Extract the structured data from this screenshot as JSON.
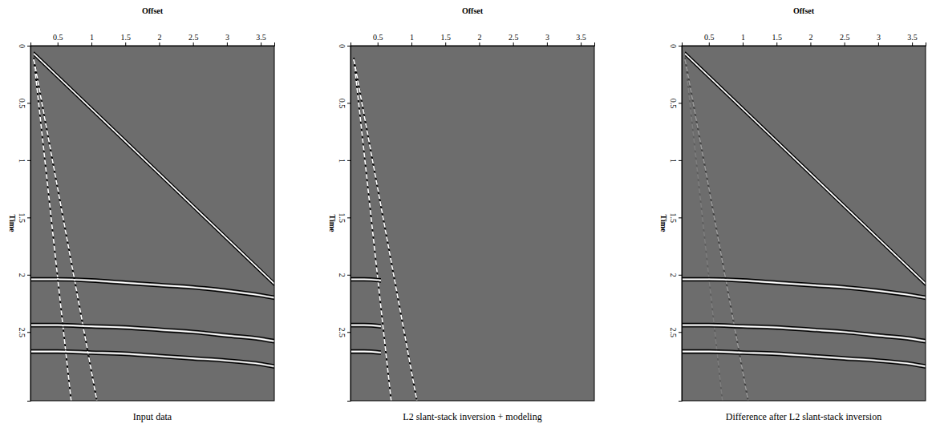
{
  "chart_data": [
    {
      "type": "line",
      "title": "Input data",
      "x_label": "Offset",
      "y_label": "Time",
      "xlim": [
        0.1,
        3.7
      ],
      "ylim": [
        0,
        3.1
      ],
      "xticks": [
        0.5,
        1,
        1.5,
        2,
        2.5,
        3,
        3.5
      ],
      "yticks": [
        0,
        0.5,
        1,
        1.5,
        2,
        2.5
      ],
      "series": [
        {
          "color": "#ffffff",
          "line_style": "solid",
          "x": [
            0.15,
            3.7
          ],
          "values": [
            0.07,
            2.08
          ]
        },
        {
          "color": "#ffffff",
          "line_style": "dashed",
          "x": [
            0.15,
            0.7
          ],
          "values": [
            0.12,
            3.1
          ]
        },
        {
          "color": "#ffffff",
          "line_style": "dashed",
          "x": [
            0.15,
            1.08
          ],
          "values": [
            0.12,
            3.1
          ]
        },
        {
          "color": "#ffffff",
          "line_style": "solid",
          "x": [
            0.1,
            0.5,
            1,
            1.5,
            2,
            2.5,
            3,
            3.5,
            3.7
          ],
          "values": [
            2.04,
            2.04,
            2.05,
            2.07,
            2.09,
            2.11,
            2.14,
            2.18,
            2.2
          ]
        },
        {
          "color": "#ffffff",
          "line_style": "solid",
          "x": [
            0.1,
            0.5,
            1,
            1.5,
            2,
            2.5,
            3,
            3.5,
            3.7
          ],
          "values": [
            2.44,
            2.44,
            2.45,
            2.46,
            2.48,
            2.5,
            2.53,
            2.56,
            2.58
          ]
        },
        {
          "color": "#ffffff",
          "line_style": "solid",
          "x": [
            0.1,
            0.5,
            1,
            1.5,
            2,
            2.5,
            3,
            3.5,
            3.7
          ],
          "values": [
            2.67,
            2.67,
            2.68,
            2.69,
            2.71,
            2.73,
            2.75,
            2.78,
            2.8
          ]
        }
      ]
    },
    {
      "type": "line",
      "title": "L2 slant-stack inversion + modeling",
      "x_label": "Offset",
      "y_label": "Time",
      "xlim": [
        0.1,
        3.7
      ],
      "ylim": [
        0,
        3.1
      ],
      "xticks": [
        0.5,
        1,
        1.5,
        2,
        2.5,
        3,
        3.5
      ],
      "yticks": [
        0,
        0.5,
        1,
        1.5,
        2,
        2.5
      ],
      "series": [
        {
          "color": "#ffffff",
          "line_style": "dashed",
          "x": [
            0.15,
            0.7
          ],
          "values": [
            0.12,
            3.1
          ]
        },
        {
          "color": "#ffffff",
          "line_style": "dashed",
          "x": [
            0.15,
            1.08
          ],
          "values": [
            0.12,
            3.1
          ]
        },
        {
          "color": "#ffffff",
          "line_style": "solid",
          "x": [
            0.1,
            0.3,
            0.55
          ],
          "values": [
            2.04,
            2.04,
            2.05
          ]
        },
        {
          "color": "#ffffff",
          "line_style": "solid",
          "x": [
            0.1,
            0.3,
            0.55
          ],
          "values": [
            2.44,
            2.44,
            2.45
          ]
        },
        {
          "color": "#ffffff",
          "line_style": "solid",
          "x": [
            0.1,
            0.3,
            0.55
          ],
          "values": [
            2.67,
            2.67,
            2.68
          ]
        }
      ]
    },
    {
      "type": "line",
      "title": "Difference after L2 slant-stack inversion",
      "x_label": "Offset",
      "y_label": "Time",
      "xlim": [
        0.1,
        3.7
      ],
      "ylim": [
        0,
        3.1
      ],
      "xticks": [
        0.5,
        1,
        1.5,
        2,
        2.5,
        3,
        3.5
      ],
      "yticks": [
        0,
        0.5,
        1,
        1.5,
        2,
        2.5
      ],
      "series": [
        {
          "color": "#ffffff",
          "line_style": "solid",
          "x": [
            0.15,
            3.7
          ],
          "values": [
            0.07,
            2.08
          ]
        },
        {
          "color": "#7e7e7e",
          "line_style": "dashed",
          "x": [
            0.15,
            0.7
          ],
          "values": [
            0.12,
            3.1
          ]
        },
        {
          "color": "#9a9a9a",
          "line_style": "dashed",
          "x": [
            0.15,
            1.08
          ],
          "values": [
            0.12,
            3.1
          ]
        },
        {
          "color": "#ffffff",
          "line_style": "solid",
          "x": [
            0.1,
            0.5,
            1,
            1.5,
            2,
            2.5,
            3,
            3.5,
            3.7
          ],
          "values": [
            2.04,
            2.04,
            2.05,
            2.07,
            2.09,
            2.11,
            2.14,
            2.18,
            2.2
          ]
        },
        {
          "color": "#ffffff",
          "line_style": "solid",
          "x": [
            0.1,
            0.5,
            1,
            1.5,
            2,
            2.5,
            3,
            3.5,
            3.7
          ],
          "values": [
            2.44,
            2.44,
            2.45,
            2.46,
            2.48,
            2.5,
            2.53,
            2.56,
            2.58
          ]
        },
        {
          "color": "#ffffff",
          "line_style": "solid",
          "x": [
            0.1,
            0.5,
            1,
            1.5,
            2,
            2.5,
            3,
            3.5,
            3.7
          ],
          "values": [
            2.67,
            2.67,
            2.68,
            2.69,
            2.71,
            2.73,
            2.75,
            2.78,
            2.8
          ]
        }
      ]
    }
  ]
}
